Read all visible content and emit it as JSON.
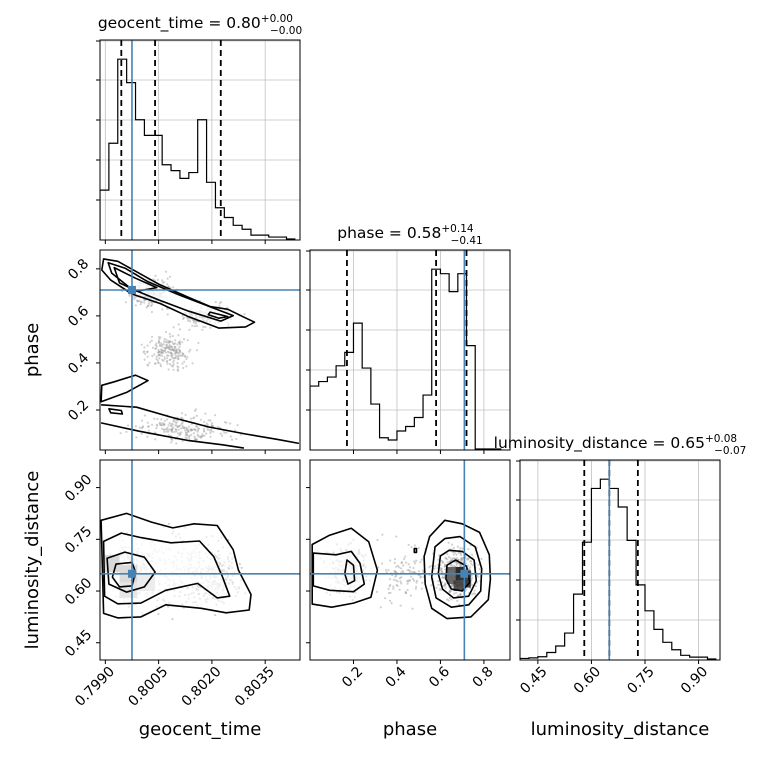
{
  "chart_data": {
    "type": "corner",
    "parameters": [
      "geocent_time",
      "phase",
      "luminosity_distance"
    ],
    "truths": [
      0.79975,
      0.71,
      0.65
    ],
    "colors": {
      "truth": "#4682b4",
      "hist": "#000000",
      "grid": "#c0c0c0",
      "quantile": "#000000"
    },
    "grid": true,
    "panels": [
      {
        "kind": "hist",
        "row": 0,
        "col": 0,
        "param": "geocent_time",
        "title_main": "geocent_time = 0.80",
        "title_sup": "+0.00",
        "title_sub": "−0.00",
        "xlim": [
          0.79885,
          0.80448
        ],
        "bins": [
          0.79885,
          0.7991,
          0.79935,
          0.7996,
          0.79985,
          0.8001,
          0.80035,
          0.8006,
          0.80085,
          0.8011,
          0.80135,
          0.8016,
          0.80185,
          0.8021,
          0.80235,
          0.8026,
          0.80285,
          0.8031,
          0.80335,
          0.8036,
          0.80385,
          0.8041,
          0.80435
        ],
        "counts": [
          0.25,
          0.49,
          0.92,
          0.8,
          0.61,
          0.53,
          0.53,
          0.38,
          0.35,
          0.31,
          0.34,
          0.61,
          0.29,
          0.16,
          0.11,
          0.07,
          0.05,
          0.02,
          0.02,
          0.01,
          0.01,
          0.0
        ],
        "quantiles": [
          0.79945,
          0.8004,
          0.80225
        ]
      },
      {
        "kind": "hist",
        "row": 1,
        "col": 1,
        "param": "phase",
        "title_main": "phase = 0.58",
        "title_sup": "+0.14",
        "title_sub": "−0.41",
        "xlim": [
          0.0,
          0.92
        ],
        "bins": [
          0.0,
          0.04,
          0.08,
          0.12,
          0.16,
          0.2,
          0.24,
          0.28,
          0.32,
          0.36,
          0.4,
          0.44,
          0.48,
          0.52,
          0.56,
          0.6,
          0.64,
          0.68,
          0.72,
          0.76,
          0.8,
          0.84,
          0.88
        ],
        "counts": [
          0.28,
          0.3,
          0.32,
          0.37,
          0.43,
          0.56,
          0.36,
          0.2,
          0.05,
          0.04,
          0.08,
          0.1,
          0.14,
          0.24,
          0.8,
          0.78,
          0.7,
          0.78,
          0.46,
          0.0,
          0.0,
          0.0
        ],
        "quantiles": [
          0.17,
          0.58,
          0.72
        ]
      },
      {
        "kind": "hist",
        "row": 2,
        "col": 2,
        "param": "luminosity_distance",
        "title_main": "luminosity_distance = 0.65",
        "title_sup": "+0.08",
        "title_sub": "−0.07",
        "xlim": [
          0.4,
          0.96
        ],
        "bins": [
          0.4,
          0.425,
          0.45,
          0.475,
          0.5,
          0.525,
          0.55,
          0.575,
          0.6,
          0.625,
          0.65,
          0.675,
          0.7,
          0.725,
          0.75,
          0.775,
          0.8,
          0.825,
          0.85,
          0.875,
          0.9,
          0.925,
          0.95
        ],
        "counts": [
          0.003,
          0.006,
          0.012,
          0.035,
          0.07,
          0.14,
          0.35,
          0.63,
          0.92,
          0.97,
          0.92,
          0.82,
          0.64,
          0.4,
          0.26,
          0.16,
          0.09,
          0.05,
          0.02,
          0.01,
          0.01,
          0.0
        ],
        "quantiles": [
          0.58,
          0.65,
          0.73
        ]
      },
      {
        "kind": "2d",
        "row": 1,
        "col": 0,
        "x": "geocent_time",
        "y": "phase",
        "xlim": [
          0.79885,
          0.80448
        ],
        "ylim": [
          0.03,
          0.88
        ],
        "contours": [
          [
            [
              0.79895,
              0.842
            ],
            [
              0.79935,
              0.832
            ],
            [
              0.79985,
              0.79
            ],
            [
              0.8005,
              0.735
            ],
            [
              0.80135,
              0.678
            ],
            [
              0.80195,
              0.64
            ],
            [
              0.80245,
              0.628
            ],
            [
              0.80288,
              0.596
            ],
            [
              0.8032,
              0.573
            ],
            [
              0.80295,
              0.553
            ],
            [
              0.8022,
              0.548
            ],
            [
              0.80135,
              0.596
            ],
            [
              0.80055,
              0.652
            ],
            [
              0.79975,
              0.693
            ],
            [
              0.79915,
              0.752
            ],
            [
              0.7989,
              0.795
            ]
          ],
          [
            [
              0.79908,
              0.826
            ],
            [
              0.79955,
              0.803
            ],
            [
              0.8002,
              0.745
            ],
            [
              0.8011,
              0.688
            ],
            [
              0.80215,
              0.627
            ],
            [
              0.8026,
              0.601
            ],
            [
              0.80225,
              0.578
            ],
            [
              0.80135,
              0.62
            ],
            [
              0.8005,
              0.668
            ],
            [
              0.79972,
              0.716
            ],
            [
              0.79918,
              0.782
            ]
          ],
          [
            [
              0.79925,
              0.805
            ],
            [
              0.79985,
              0.76
            ],
            [
              0.80045,
              0.72
            ],
            [
              0.7999,
              0.705
            ],
            [
              0.7994,
              0.74
            ]
          ],
          [
            [
              0.80195,
              0.616
            ],
            [
              0.80245,
              0.597
            ],
            [
              0.8022,
              0.59
            ],
            [
              0.8019,
              0.605
            ]
          ],
          [
            [
              0.79888,
              0.235
            ],
            [
              0.7996,
              0.275
            ],
            [
              0.8002,
              0.325
            ],
            [
              0.79985,
              0.348
            ],
            [
              0.79925,
              0.32
            ],
            [
              0.7989,
              0.305
            ]
          ],
          [
            [
              0.79888,
              0.222
            ],
            [
              0.79988,
              0.212
            ],
            [
              0.80085,
              0.17
            ],
            [
              0.8019,
              0.128
            ],
            [
              0.80295,
              0.098
            ],
            [
              0.80385,
              0.075
            ],
            [
              0.80445,
              0.058
            ]
          ],
          [
            [
              0.79888,
              0.145
            ],
            [
              0.79995,
              0.11
            ],
            [
              0.80135,
              0.07
            ],
            [
              0.8023,
              0.052
            ],
            [
              0.8029,
              0.038
            ]
          ],
          [
            [
              0.7991,
              0.205
            ],
            [
              0.79945,
              0.198
            ],
            [
              0.79948,
              0.183
            ],
            [
              0.79915,
              0.188
            ]
          ]
        ]
      },
      {
        "kind": "2d",
        "row": 2,
        "col": 0,
        "x": "geocent_time",
        "y": "luminosity_distance",
        "xlim": [
          0.79885,
          0.80448
        ],
        "ylim": [
          0.4,
          0.98
        ],
        "contours": [
          [
            [
              0.79888,
              0.805
            ],
            [
              0.7996,
              0.825
            ],
            [
              0.8003,
              0.8
            ],
            [
              0.8009,
              0.783
            ],
            [
              0.8015,
              0.795
            ],
            [
              0.80215,
              0.79
            ],
            [
              0.8026,
              0.72
            ],
            [
              0.80275,
              0.66
            ],
            [
              0.8031,
              0.59
            ],
            [
              0.80305,
              0.545
            ],
            [
              0.8024,
              0.537
            ],
            [
              0.8017,
              0.55
            ],
            [
              0.8007,
              0.56
            ],
            [
              0.8,
              0.525
            ],
            [
              0.79935,
              0.522
            ],
            [
              0.79895,
              0.535
            ]
          ],
          [
            [
              0.79895,
              0.744
            ],
            [
              0.79945,
              0.768
            ],
            [
              0.8,
              0.755
            ],
            [
              0.80085,
              0.74
            ],
            [
              0.80165,
              0.745
            ],
            [
              0.80205,
              0.7
            ],
            [
              0.8023,
              0.64
            ],
            [
              0.8025,
              0.585
            ],
            [
              0.80215,
              0.58
            ],
            [
              0.8016,
              0.622
            ],
            [
              0.8007,
              0.602
            ],
            [
              0.8,
              0.565
            ],
            [
              0.79935,
              0.563
            ],
            [
              0.79898,
              0.585
            ]
          ],
          [
            [
              0.79905,
              0.695
            ],
            [
              0.79955,
              0.713
            ],
            [
              0.8001,
              0.698
            ],
            [
              0.8004,
              0.655
            ],
            [
              0.8001,
              0.612
            ],
            [
              0.7996,
              0.597
            ],
            [
              0.7991,
              0.62
            ]
          ],
          [
            [
              0.7993,
              0.678
            ],
            [
              0.79975,
              0.683
            ],
            [
              0.79985,
              0.655
            ],
            [
              0.79975,
              0.615
            ],
            [
              0.7994,
              0.612
            ],
            [
              0.7992,
              0.64
            ]
          ]
        ],
        "blocks": [
          {
            "x0": 0.79895,
            "x1": 0.7994,
            "y0": 0.655,
            "y1": 0.705,
            "shade": "#222222"
          },
          {
            "x0": 0.7994,
            "x1": 0.7999,
            "y0": 0.625,
            "y1": 0.675,
            "shade": "#333333"
          },
          {
            "x0": 0.7999,
            "x1": 0.8004,
            "y0": 0.6,
            "y1": 0.65,
            "shade": "#9a9a9a"
          },
          {
            "x0": 0.7994,
            "x1": 0.7999,
            "y0": 0.58,
            "y1": 0.625,
            "shade": "#777777"
          }
        ]
      },
      {
        "kind": "2d",
        "row": 2,
        "col": 1,
        "x": "phase",
        "y": "luminosity_distance",
        "xlim": [
          0.0,
          0.92
        ],
        "ylim": [
          0.4,
          0.98
        ],
        "contours": [
          [
            [
              0.01,
              0.735
            ],
            [
              0.09,
              0.762
            ],
            [
              0.19,
              0.782
            ],
            [
              0.27,
              0.743
            ],
            [
              0.31,
              0.66
            ],
            [
              0.28,
              0.582
            ],
            [
              0.2,
              0.565
            ],
            [
              0.1,
              0.553
            ],
            [
              0.01,
              0.562
            ]
          ],
          [
            [
              0.015,
              0.71
            ],
            [
              0.12,
              0.705
            ],
            [
              0.19,
              0.715
            ],
            [
              0.23,
              0.68
            ],
            [
              0.25,
              0.62
            ],
            [
              0.2,
              0.598
            ],
            [
              0.09,
              0.602
            ],
            [
              0.015,
              0.615
            ]
          ],
          [
            [
              0.17,
              0.69
            ],
            [
              0.2,
              0.675
            ],
            [
              0.205,
              0.63
            ],
            [
              0.175,
              0.62
            ],
            [
              0.16,
              0.65
            ]
          ],
          [
            [
              0.55,
              0.758
            ],
            [
              0.62,
              0.805
            ],
            [
              0.7,
              0.795
            ],
            [
              0.78,
              0.77
            ],
            [
              0.825,
              0.705
            ],
            [
              0.83,
              0.635
            ],
            [
              0.82,
              0.575
            ],
            [
              0.74,
              0.525
            ],
            [
              0.63,
              0.52
            ],
            [
              0.56,
              0.55
            ],
            [
              0.53,
              0.62
            ],
            [
              0.525,
              0.7
            ]
          ],
          [
            [
              0.575,
              0.728
            ],
            [
              0.62,
              0.752
            ],
            [
              0.69,
              0.758
            ],
            [
              0.76,
              0.728
            ],
            [
              0.79,
              0.665
            ],
            [
              0.785,
              0.6
            ],
            [
              0.73,
              0.56
            ],
            [
              0.65,
              0.553
            ],
            [
              0.58,
              0.58
            ],
            [
              0.56,
              0.64
            ]
          ],
          [
            [
              0.6,
              0.702
            ],
            [
              0.64,
              0.718
            ],
            [
              0.7,
              0.715
            ],
            [
              0.755,
              0.69
            ],
            [
              0.765,
              0.63
            ],
            [
              0.73,
              0.585
            ],
            [
              0.66,
              0.58
            ],
            [
              0.61,
              0.605
            ],
            [
              0.59,
              0.65
            ]
          ],
          [
            [
              0.63,
              0.675
            ],
            [
              0.67,
              0.69
            ],
            [
              0.72,
              0.672
            ],
            [
              0.735,
              0.625
            ],
            [
              0.7,
              0.6
            ],
            [
              0.65,
              0.606
            ],
            [
              0.625,
              0.635
            ]
          ],
          [
            [
              0.48,
              0.723
            ],
            [
              0.49,
              0.723
            ],
            [
              0.49,
              0.712
            ],
            [
              0.48,
              0.712
            ]
          ]
        ],
        "blocks": [
          {
            "x0": 0.63,
            "x1": 0.67,
            "y0": 0.62,
            "y1": 0.67,
            "shade": "#555555"
          },
          {
            "x0": 0.67,
            "x1": 0.71,
            "y0": 0.63,
            "y1": 0.67,
            "shade": "#111111"
          },
          {
            "x0": 0.71,
            "x1": 0.74,
            "y0": 0.61,
            "y1": 0.66,
            "shade": "#222222"
          },
          {
            "x0": 0.66,
            "x1": 0.71,
            "y0": 0.6,
            "y1": 0.63,
            "shade": "#333333"
          },
          {
            "x0": 0.19,
            "x1": 0.22,
            "y0": 0.625,
            "y1": 0.675,
            "shade": "#bbbbbb"
          }
        ]
      }
    ],
    "ticks": {
      "geocent_time": {
        "values": [
          0.799,
          0.8005,
          0.802,
          0.8035
        ],
        "labels": [
          "0.7990",
          "0.8005",
          "0.8020",
          "0.8035"
        ]
      },
      "phase": {
        "values": [
          0.2,
          0.4,
          0.6,
          0.8
        ],
        "labels": [
          "0.2",
          "0.4",
          "0.6",
          "0.8"
        ]
      },
      "luminosity_distance": {
        "values": [
          0.45,
          0.6,
          0.75,
          0.9
        ],
        "labels": [
          "0.45",
          "0.60",
          "0.75",
          "0.90"
        ]
      }
    },
    "axis_labels": {
      "geocent_time": "geocent_time",
      "phase": "phase",
      "luminosity_distance": "luminosity_distance"
    }
  }
}
